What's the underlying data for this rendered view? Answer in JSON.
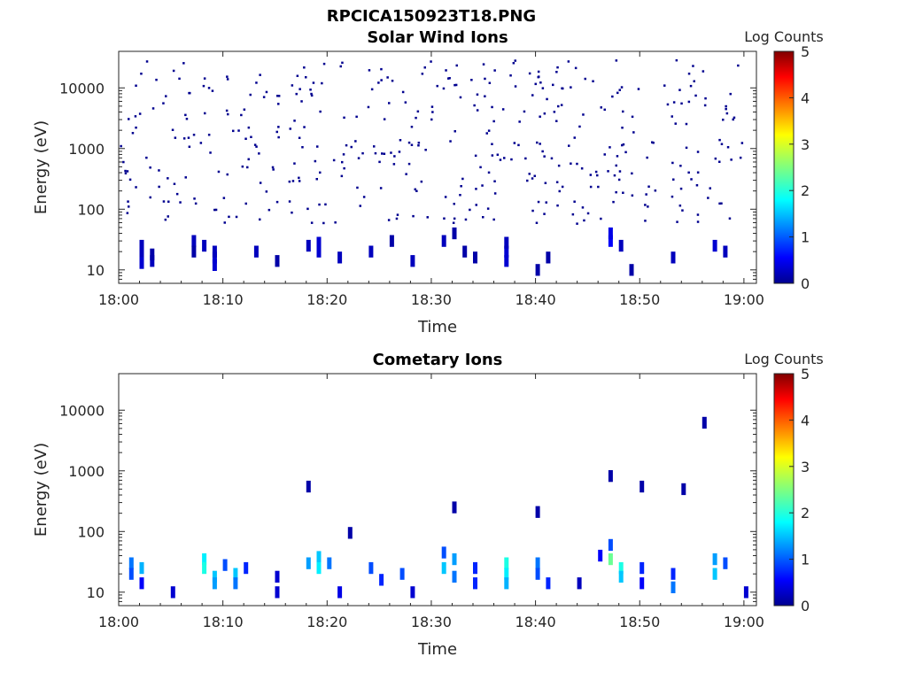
{
  "figure": {
    "title": "RPCICA150923T18.PNG",
    "colorbar_label": "Log Counts",
    "colorbar_ticks": [
      "0",
      "1",
      "2",
      "3",
      "4",
      "5"
    ],
    "colorbar_range": [
      0,
      5
    ],
    "colormap": "jet"
  },
  "chart_data": [
    {
      "type": "heatmap",
      "title": "Solar Wind Ions",
      "xlabel": "Time",
      "ylabel": "Energy (eV)",
      "yscale": "log",
      "xlim": [
        "18:00",
        "19:00"
      ],
      "ylim": [
        6,
        40000
      ],
      "xticks": [
        "18:00",
        "18:10",
        "18:20",
        "18:30",
        "18:40",
        "18:50",
        "19:00"
      ],
      "yticks": [
        "10",
        "100",
        "1000",
        "10000"
      ],
      "grid": false,
      "cells": [
        [
          "18:02",
          25,
          0.3
        ],
        [
          "18:02",
          18,
          0.3
        ],
        [
          "18:02",
          13,
          0.4
        ],
        [
          "18:03",
          14,
          0.3
        ],
        [
          "18:03",
          18,
          0.2
        ],
        [
          "18:07",
          30,
          0.3
        ],
        [
          "18:07",
          20,
          0.2
        ],
        [
          "18:08",
          25,
          0.3
        ],
        [
          "18:09",
          12,
          0.4
        ],
        [
          "18:09",
          16,
          0.4
        ],
        [
          "18:09",
          20,
          0.3
        ],
        [
          "18:13",
          20,
          0.3
        ],
        [
          "18:15",
          14,
          0.2
        ],
        [
          "18:18",
          25,
          0.3
        ],
        [
          "18:19",
          28,
          0.4
        ],
        [
          "18:19",
          20,
          0.4
        ],
        [
          "18:21",
          16,
          0.3
        ],
        [
          "18:24",
          20,
          0.3
        ],
        [
          "18:26",
          30,
          0.2
        ],
        [
          "18:28",
          14,
          0.3
        ],
        [
          "18:31",
          30,
          0.3
        ],
        [
          "18:32",
          40,
          0.2
        ],
        [
          "18:33",
          20,
          0.2
        ],
        [
          "18:34",
          16,
          0.2
        ],
        [
          "18:37",
          14,
          0.4
        ],
        [
          "18:37",
          20,
          0.4
        ],
        [
          "18:37",
          28,
          0.3
        ],
        [
          "18:40",
          10,
          0.2
        ],
        [
          "18:41",
          16,
          0.2
        ],
        [
          "18:47",
          30,
          0.6
        ],
        [
          "18:47",
          40,
          0.5
        ],
        [
          "18:48",
          25,
          0.3
        ],
        [
          "18:49",
          10,
          0.2
        ],
        [
          "18:53",
          16,
          0.3
        ],
        [
          "18:57",
          25,
          0.4
        ],
        [
          "18:58",
          20,
          0.3
        ]
      ],
      "sparse_dots_energy_range": [
        60,
        30000
      ]
    },
    {
      "type": "heatmap",
      "title": "Cometary Ions",
      "xlabel": "Time",
      "ylabel": "Energy (eV)",
      "yscale": "log",
      "xlim": [
        "18:00",
        "19:00"
      ],
      "ylim": [
        6,
        40000
      ],
      "xticks": [
        "18:00",
        "18:10",
        "18:20",
        "18:30",
        "18:40",
        "18:50",
        "19:00"
      ],
      "yticks": [
        "10",
        "100",
        "1000",
        "10000"
      ],
      "grid": false,
      "cells": [
        [
          "18:01",
          30,
          1.2
        ],
        [
          "18:01",
          20,
          1.0
        ],
        [
          "18:02",
          14,
          0.6
        ],
        [
          "18:02",
          25,
          1.5
        ],
        [
          "18:05",
          10,
          0.4
        ],
        [
          "18:08",
          35,
          1.8
        ],
        [
          "18:08",
          25,
          2.0
        ],
        [
          "18:09",
          18,
          1.6
        ],
        [
          "18:09",
          14,
          1.4
        ],
        [
          "18:10",
          28,
          1.0
        ],
        [
          "18:11",
          20,
          1.6
        ],
        [
          "18:11",
          14,
          1.2
        ],
        [
          "18:12",
          25,
          0.8
        ],
        [
          "18:15",
          18,
          0.4
        ],
        [
          "18:15",
          10,
          0.4
        ],
        [
          "18:18",
          30,
          1.4
        ],
        [
          "18:19",
          38,
          1.6
        ],
        [
          "18:19",
          25,
          1.8
        ],
        [
          "18:20",
          30,
          1.2
        ],
        [
          "18:21",
          10,
          0.5
        ],
        [
          "18:24",
          25,
          1.0
        ],
        [
          "18:25",
          16,
          0.8
        ],
        [
          "18:27",
          20,
          1.0
        ],
        [
          "18:28",
          10,
          0.4
        ],
        [
          "18:31",
          45,
          1.0
        ],
        [
          "18:31",
          25,
          1.6
        ],
        [
          "18:32",
          35,
          1.4
        ],
        [
          "18:32",
          18,
          1.2
        ],
        [
          "18:34",
          25,
          0.8
        ],
        [
          "18:34",
          14,
          0.8
        ],
        [
          "18:37",
          30,
          2.0
        ],
        [
          "18:37",
          20,
          1.8
        ],
        [
          "18:37",
          14,
          1.5
        ],
        [
          "18:40",
          30,
          1.2
        ],
        [
          "18:40",
          20,
          1.0
        ],
        [
          "18:41",
          14,
          0.8
        ],
        [
          "18:44",
          14,
          0.3
        ],
        [
          "18:46",
          40,
          0.6
        ],
        [
          "18:47",
          60,
          1.0
        ],
        [
          "18:47",
          35,
          2.4
        ],
        [
          "18:48",
          25,
          2.0
        ],
        [
          "18:48",
          18,
          1.6
        ],
        [
          "18:50",
          25,
          0.8
        ],
        [
          "18:50",
          14,
          0.6
        ],
        [
          "18:53",
          20,
          0.8
        ],
        [
          "18:53",
          12,
          1.2
        ],
        [
          "18:57",
          35,
          1.4
        ],
        [
          "18:57",
          20,
          1.6
        ],
        [
          "18:58",
          30,
          1.0
        ],
        [
          "19:00",
          10,
          0.4
        ],
        [
          "18:18",
          550,
          0.2
        ],
        [
          "18:22",
          95,
          0.2
        ],
        [
          "18:32",
          250,
          0.2
        ],
        [
          "18:40",
          210,
          0.2
        ],
        [
          "18:47",
          820,
          0.2
        ],
        [
          "18:50",
          550,
          0.2
        ],
        [
          "18:54",
          500,
          0.2
        ],
        [
          "18:56",
          6200,
          0.2
        ]
      ]
    }
  ]
}
